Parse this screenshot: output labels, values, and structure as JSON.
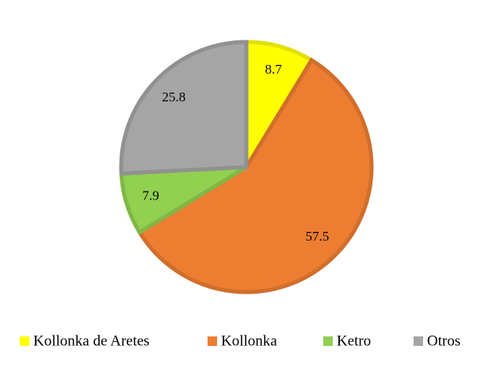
{
  "chart_data": {
    "type": "pie",
    "categories": [
      "Kollonka de Aretes",
      "Kollonka",
      "Ketro",
      "Otros"
    ],
    "values": [
      8.7,
      57.5,
      7.9,
      25.8
    ],
    "colors": [
      "#ffff00",
      "#ed7d31",
      "#92d050",
      "#a5a5a5"
    ],
    "legend": "bottom"
  }
}
